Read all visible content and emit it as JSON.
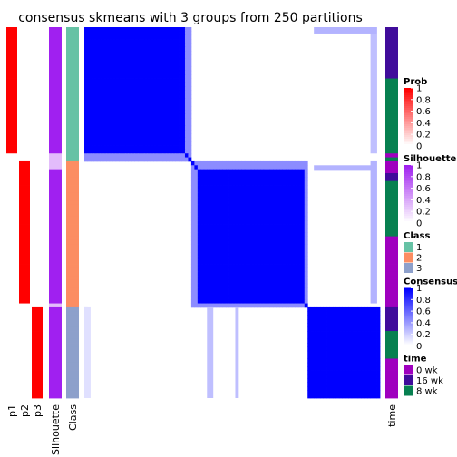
{
  "chart_data": {
    "type": "heatmap",
    "title": "consensus skmeans with 3 groups from 250 partitions",
    "column_labels": [
      "p1",
      "p2",
      "p3",
      "Silhouette",
      "Class"
    ],
    "right_label": "time",
    "groups": [
      {
        "class": 1,
        "n": 34
      },
      {
        "class": 2,
        "n": 37
      },
      {
        "class": 3,
        "n": 23
      }
    ],
    "prob": {
      "p1": [
        1,
        1,
        1,
        1,
        1,
        1,
        1,
        1,
        1,
        1,
        1,
        1,
        1,
        1,
        1,
        1,
        1,
        1,
        1,
        1,
        1,
        1,
        1,
        1,
        1,
        1,
        1,
        1,
        1,
        1,
        1,
        1,
        0,
        0,
        0,
        0,
        0,
        0,
        0,
        0,
        0,
        0,
        0,
        0,
        0,
        0,
        0,
        0,
        0,
        0,
        0,
        0,
        0,
        0,
        0,
        0,
        0,
        0,
        0,
        0,
        0,
        0,
        0,
        0,
        0,
        0,
        0,
        0,
        0,
        0,
        0,
        0,
        0,
        0,
        0,
        0,
        0,
        0,
        0,
        0,
        0,
        0,
        0,
        0,
        0,
        0,
        0,
        0,
        0,
        0,
        0,
        0,
        0,
        0
      ],
      "p2": [
        0,
        0,
        0,
        0,
        0,
        0,
        0,
        0,
        0,
        0,
        0,
        0,
        0,
        0,
        0,
        0,
        0,
        0,
        0,
        0,
        0,
        0,
        0,
        0,
        0,
        0,
        0,
        0,
        0,
        0,
        0,
        0,
        0,
        0,
        1,
        1,
        1,
        1,
        1,
        1,
        1,
        1,
        1,
        1,
        1,
        1,
        1,
        1,
        1,
        1,
        1,
        1,
        1,
        1,
        1,
        1,
        1,
        1,
        1,
        1,
        1,
        1,
        1,
        1,
        1,
        1,
        1,
        1,
        1,
        1,
        0,
        0,
        0,
        0,
        0,
        0,
        0,
        0,
        0,
        0,
        0,
        0,
        0,
        0,
        0,
        0,
        0,
        0,
        0,
        0,
        0,
        0,
        0,
        0
      ],
      "p3": [
        0,
        0,
        0,
        0,
        0,
        0,
        0,
        0,
        0,
        0,
        0,
        0,
        0,
        0,
        0,
        0,
        0,
        0,
        0,
        0,
        0,
        0,
        0,
        0,
        0,
        0,
        0,
        0,
        0,
        0,
        0,
        0,
        0,
        0,
        0,
        0,
        0,
        0,
        0,
        0,
        0,
        0,
        0,
        0,
        0,
        0,
        0,
        0,
        0,
        0,
        0,
        0,
        0,
        0,
        0,
        0,
        0,
        0,
        0,
        0,
        0,
        0,
        0,
        0,
        0,
        0,
        0,
        0,
        0,
        0,
        0,
        1,
        1,
        1,
        1,
        1,
        1,
        1,
        1,
        1,
        1,
        1,
        1,
        1,
        1,
        1,
        1,
        1,
        1,
        1,
        1,
        1,
        1,
        1
      ]
    },
    "silhouette": [
      1,
      1,
      1,
      1,
      1,
      1,
      1,
      1,
      1,
      1,
      1,
      1,
      1,
      1,
      1,
      1,
      1,
      1,
      1,
      1,
      1,
      1,
      1,
      1,
      1,
      1,
      1,
      1,
      1,
      1,
      1,
      1,
      0.3,
      0.3,
      0.3,
      0.3,
      1,
      1,
      1,
      1,
      1,
      1,
      1,
      1,
      1,
      1,
      1,
      1,
      1,
      1,
      1,
      1,
      1,
      1,
      1,
      1,
      1,
      1,
      1,
      1,
      1,
      1,
      1,
      1,
      1,
      1,
      1,
      1,
      1,
      1,
      0.3,
      1,
      1,
      1,
      1,
      1,
      1,
      1,
      1,
      1,
      1,
      1,
      1,
      1,
      1,
      1,
      1,
      1,
      1,
      1,
      1,
      1,
      1,
      1
    ],
    "time": [
      "16 wk",
      "16 wk",
      "16 wk",
      "16 wk",
      "16 wk",
      "16 wk",
      "16 wk",
      "16 wk",
      "16 wk",
      "16 wk",
      "16 wk",
      "16 wk",
      "16 wk",
      "8 wk",
      "8 wk",
      "8 wk",
      "8 wk",
      "8 wk",
      "8 wk",
      "8 wk",
      "8 wk",
      "8 wk",
      "8 wk",
      "8 wk",
      "8 wk",
      "8 wk",
      "8 wk",
      "8 wk",
      "8 wk",
      "8 wk",
      "8 wk",
      "8 wk",
      "0 wk",
      "8 wk",
      "0 wk",
      "0 wk",
      "0 wk",
      "16 wk",
      "16 wk",
      "8 wk",
      "8 wk",
      "8 wk",
      "8 wk",
      "8 wk",
      "8 wk",
      "8 wk",
      "8 wk",
      "8 wk",
      "8 wk",
      "8 wk",
      "8 wk",
      "8 wk",
      "8 wk",
      "0 wk",
      "0 wk",
      "0 wk",
      "0 wk",
      "0 wk",
      "0 wk",
      "0 wk",
      "0 wk",
      "0 wk",
      "0 wk",
      "0 wk",
      "0 wk",
      "0 wk",
      "0 wk",
      "0 wk",
      "0 wk",
      "0 wk",
      "0 wk",
      "16 wk",
      "16 wk",
      "16 wk",
      "16 wk",
      "16 wk",
      "16 wk",
      "8 wk",
      "8 wk",
      "8 wk",
      "8 wk",
      "8 wk",
      "8 wk",
      "8 wk",
      "0 wk",
      "0 wk",
      "0 wk",
      "0 wk",
      "0 wk",
      "0 wk",
      "0 wk",
      "0 wk",
      "0 wk",
      "0 wk",
      "0 wk"
    ],
    "legends": [
      {
        "title": "Prob",
        "ticks": [
          "1",
          "0.8",
          "0.6",
          "0.4",
          "0.2",
          "0"
        ],
        "colors": [
          "#FF0000",
          "#FFFFFF"
        ]
      },
      {
        "title": "Silhouette",
        "ticks": [
          "1",
          "0.8",
          "0.6",
          "0.4",
          "0.2",
          "0"
        ],
        "colors": [
          "#A020F0",
          "#FFFFFF"
        ]
      },
      {
        "title": "Class",
        "items": [
          {
            "label": "1",
            "color": "#66C2A5"
          },
          {
            "label": "2",
            "color": "#FC8D62"
          },
          {
            "label": "3",
            "color": "#8DA0CB"
          }
        ]
      },
      {
        "title": "Consensus",
        "ticks": [
          "1",
          "0.8",
          "0.6",
          "0.4",
          "0.2",
          "0"
        ],
        "colors": [
          "#0000FF",
          "#FFFFFF"
        ]
      },
      {
        "title": "time",
        "items": [
          {
            "label": "0 wk",
            "color": "#9F00BF"
          },
          {
            "label": "16 wk",
            "color": "#400C9B"
          },
          {
            "label": "8 wk",
            "color": "#078050"
          }
        ]
      }
    ]
  }
}
